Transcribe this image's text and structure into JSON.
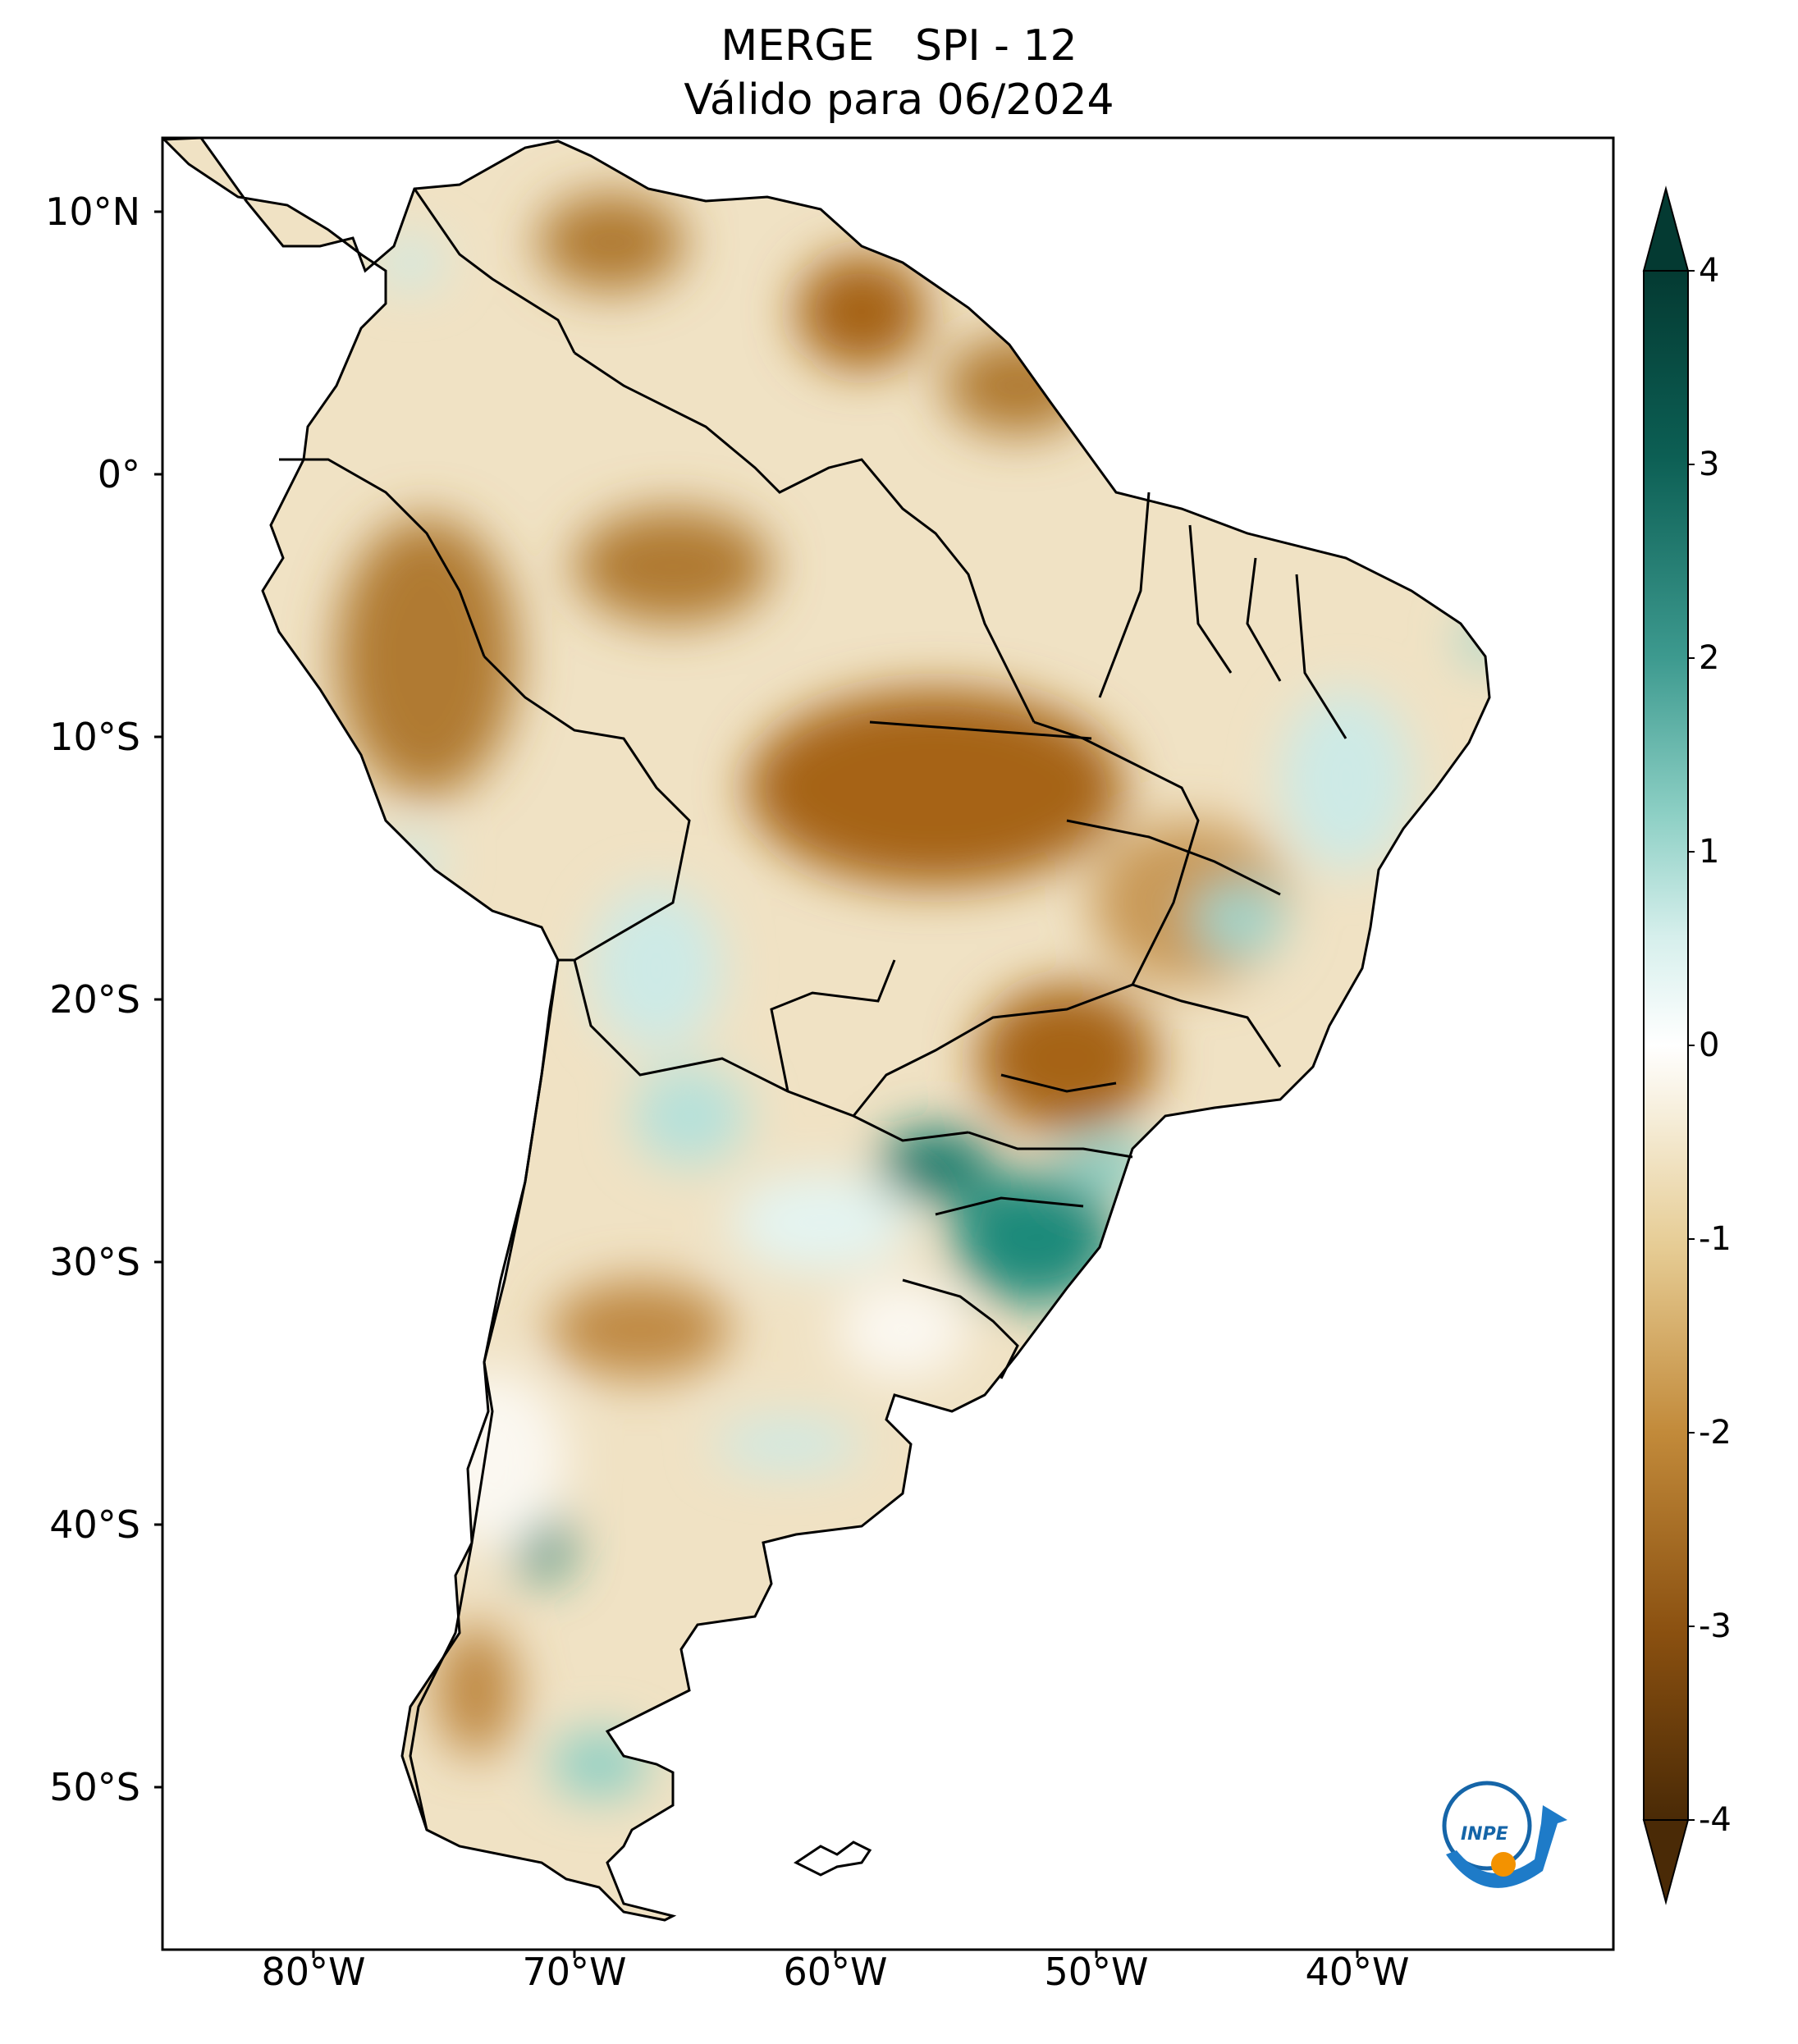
{
  "title": {
    "line1": "MERGE   SPI - 12",
    "line2": "Válido para 06/2024"
  },
  "map": {
    "lat_ticks": [
      "10°N",
      "0°",
      "10°S",
      "20°S",
      "30°S",
      "40°S",
      "50°S"
    ],
    "lon_ticks": [
      "80°W",
      "70°W",
      "60°W",
      "50°W",
      "40°W"
    ],
    "logo_text": "INPE"
  },
  "colorbar": {
    "ticks": [
      "4",
      "3",
      "2",
      "1",
      "0",
      "-1",
      "-2",
      "-3",
      "-4"
    ],
    "range": [
      -4,
      4
    ],
    "extend": "both",
    "colors": [
      "#4a2a06",
      "#8a5010",
      "#c28a3a",
      "#e6cc94",
      "#f5ecd6",
      "#ffffff",
      "#d6efec",
      "#8ccfc4",
      "#3d9a8f",
      "#0c5f54",
      "#043a32"
    ]
  },
  "colors": {
    "dry_strong": "#a66418",
    "dry_moderate": "#c99a58",
    "dry_light": "#ecdcb8",
    "neutral": "#fbf8f1",
    "wet_light": "#cdeae6",
    "wet_strong": "#137a6c",
    "border": "#000000"
  }
}
